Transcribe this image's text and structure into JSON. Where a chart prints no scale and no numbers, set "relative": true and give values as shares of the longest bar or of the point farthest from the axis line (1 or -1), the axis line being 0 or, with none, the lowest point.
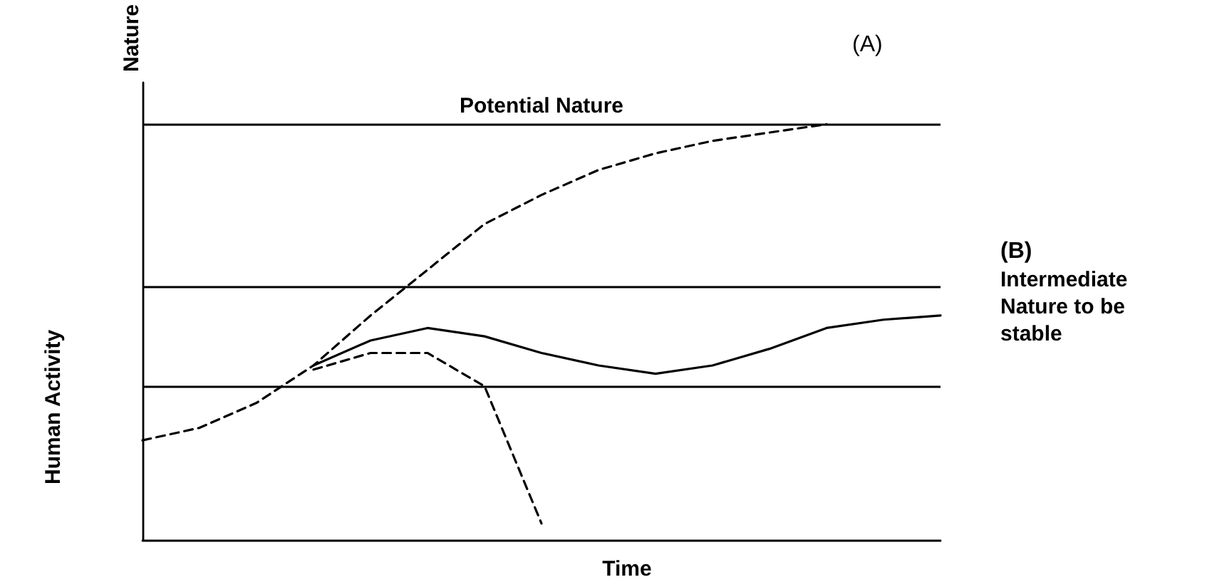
{
  "chart_data": {
    "type": "line",
    "relative": true,
    "xlabel": "Time",
    "ylabel": "Nature",
    "categories": [
      null,
      null,
      null,
      null,
      null,
      null,
      null,
      null,
      null,
      null,
      null,
      null,
      null,
      null,
      null
    ],
    "series": [
      {
        "color": "#000000",
        "line_style": "dashed",
        "values": [
          0.24,
          0.27,
          0.33,
          0.42,
          0.54,
          0.65,
          0.76,
          0.83,
          0.89,
          0.93,
          0.96,
          0.98,
          1.0,
          null,
          null
        ]
      },
      {
        "color": "#000000",
        "line_style": "solid",
        "values": [
          null,
          null,
          null,
          0.42,
          0.48,
          0.51,
          0.49,
          0.45,
          0.42,
          0.4,
          0.42,
          0.46,
          0.51,
          0.53,
          0.54
        ]
      },
      {
        "color": "#000000",
        "line_style": "dashed",
        "values": [
          null,
          null,
          null,
          0.41,
          0.45,
          0.45,
          0.37,
          0.04,
          null,
          null,
          null,
          null,
          null,
          null,
          null
        ]
      }
    ],
    "ref_lines": [
      {
        "axis": "y",
        "value": 1.0,
        "label": "Potential Nature"
      },
      {
        "axis": "y",
        "value": 0.61
      },
      {
        "axis": "y",
        "value": 0.37
      }
    ],
    "annotations": [
      "(A)",
      "(B)",
      "Intermediate Nature to be stable",
      "Human Activity"
    ],
    "marker": "none"
  }
}
